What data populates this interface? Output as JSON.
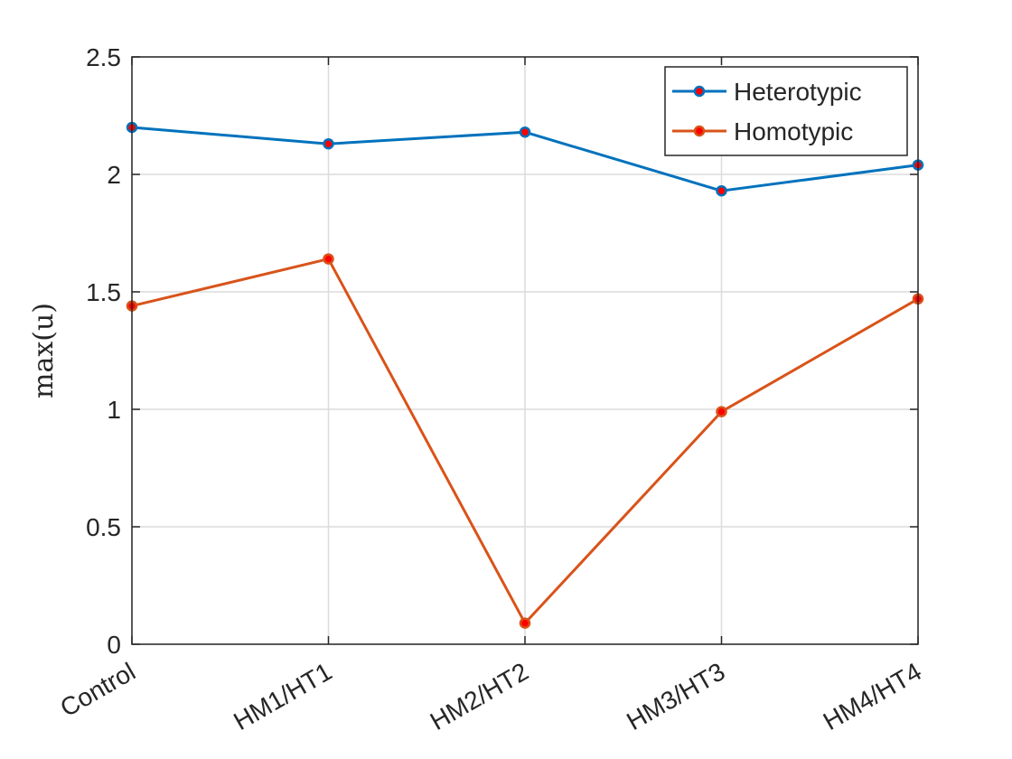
{
  "chart_data": {
    "type": "line",
    "categories": [
      "Control",
      "HM1/HT1",
      "HM2/HT2",
      "HM3/HT3",
      "HM4/HT4"
    ],
    "series": [
      {
        "name": "Heterotypic",
        "color": "#0072BD",
        "values": [
          2.2,
          2.13,
          2.18,
          1.93,
          2.04
        ]
      },
      {
        "name": "Homotypic",
        "color": "#D95319",
        "values": [
          1.44,
          1.64,
          0.09,
          0.99,
          1.47
        ]
      }
    ],
    "marker_color": "#ff0000",
    "ylabel": "max(u)",
    "xlabel": "",
    "ylim": [
      0,
      2.5
    ],
    "yticks": [
      "0",
      "0.5",
      "1",
      "1.5",
      "2",
      "2.5"
    ],
    "grid": true,
    "legend_position": "top-right"
  }
}
